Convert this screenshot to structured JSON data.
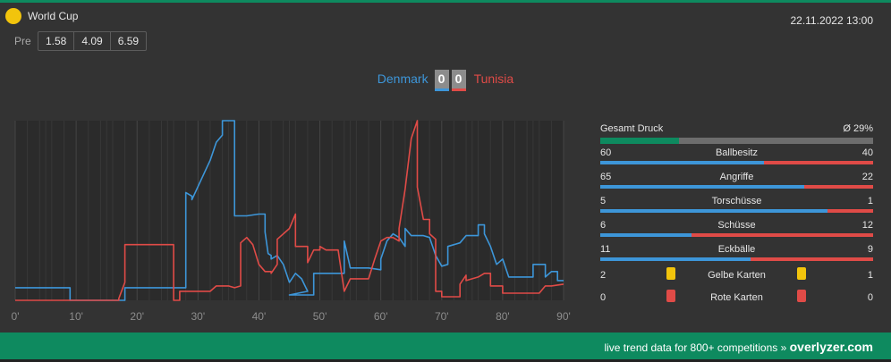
{
  "competition": {
    "name": "World Cup"
  },
  "datetime": "22.11.2022 13:00",
  "odds": {
    "label": "Pre",
    "values": [
      "1.58",
      "4.09",
      "6.59"
    ]
  },
  "match": {
    "home": "Denmark",
    "away": "Tunisia",
    "home_score": "0",
    "away_score": "0"
  },
  "colors": {
    "home": "#3d96d9",
    "away": "#e04b47",
    "accent": "#0e8a5f",
    "yellow_card": "#f2c40c"
  },
  "chart_data": {
    "type": "line",
    "x_ticks": [
      "0'",
      "10'",
      "20'",
      "30'",
      "40'",
      "50'",
      "60'",
      "70'",
      "80'",
      "90'"
    ],
    "xlim": [
      0,
      90
    ],
    "ylim": [
      0,
      100
    ],
    "grid": true,
    "series": [
      {
        "name": "Denmark",
        "color": "#3d96d9",
        "points": [
          [
            0,
            7
          ],
          [
            9,
            7
          ],
          [
            9,
            0
          ],
          [
            18,
            0
          ],
          [
            18,
            7
          ],
          [
            28,
            7
          ],
          [
            28,
            60
          ],
          [
            29,
            58
          ],
          [
            29,
            56
          ],
          [
            32,
            78
          ],
          [
            33,
            88
          ],
          [
            34,
            92
          ],
          [
            34,
            100
          ],
          [
            36,
            100
          ],
          [
            36,
            47
          ],
          [
            38,
            47
          ],
          [
            40,
            48
          ],
          [
            41,
            48
          ],
          [
            41,
            38
          ],
          [
            41.5,
            26
          ],
          [
            42,
            25
          ],
          [
            42,
            23
          ],
          [
            43,
            25
          ],
          [
            44,
            20
          ],
          [
            45,
            10
          ],
          [
            46,
            15
          ],
          [
            47,
            12
          ],
          [
            48,
            5
          ],
          [
            45,
            3
          ],
          [
            49,
            3
          ],
          [
            49,
            15
          ],
          [
            53,
            15
          ],
          [
            54,
            15
          ],
          [
            54,
            33
          ],
          [
            55,
            18
          ],
          [
            58,
            18
          ],
          [
            60,
            17
          ],
          [
            60,
            23
          ],
          [
            61,
            33
          ],
          [
            62,
            37
          ],
          [
            63,
            35
          ],
          [
            64,
            30
          ],
          [
            64,
            40
          ],
          [
            65,
            36
          ],
          [
            67,
            36
          ],
          [
            68,
            35
          ],
          [
            69,
            25
          ],
          [
            70,
            19
          ],
          [
            71,
            20
          ],
          [
            71,
            30
          ],
          [
            73,
            32
          ],
          [
            74,
            36
          ],
          [
            76,
            36
          ],
          [
            76,
            42
          ],
          [
            77,
            42
          ],
          [
            77,
            37
          ],
          [
            78,
            30
          ],
          [
            79,
            20
          ],
          [
            80,
            23
          ],
          [
            81,
            13
          ],
          [
            85,
            13
          ],
          [
            85,
            20
          ],
          [
            87,
            20
          ],
          [
            87,
            13
          ],
          [
            88,
            16
          ],
          [
            89,
            16
          ],
          [
            89,
            11
          ],
          [
            90,
            11
          ]
        ]
      },
      {
        "name": "Tunisia",
        "color": "#e04b47",
        "points": [
          [
            0,
            0
          ],
          [
            17,
            0
          ],
          [
            17,
            1
          ],
          [
            18,
            10
          ],
          [
            18,
            31
          ],
          [
            26,
            31
          ],
          [
            26,
            0
          ],
          [
            27,
            0
          ],
          [
            27,
            5
          ],
          [
            31,
            5
          ],
          [
            32,
            5
          ],
          [
            33,
            8
          ],
          [
            35,
            8
          ],
          [
            36,
            7
          ],
          [
            37,
            8
          ],
          [
            37,
            32
          ],
          [
            38,
            35
          ],
          [
            39,
            31
          ],
          [
            40,
            20
          ],
          [
            41,
            16
          ],
          [
            42,
            16
          ],
          [
            42,
            15
          ],
          [
            43,
            20
          ],
          [
            43,
            34
          ],
          [
            45,
            40
          ],
          [
            46,
            48
          ],
          [
            46,
            30
          ],
          [
            48,
            30
          ],
          [
            48,
            21
          ],
          [
            49,
            28
          ],
          [
            50,
            28
          ],
          [
            50,
            30
          ],
          [
            51,
            28
          ],
          [
            53,
            28
          ],
          [
            54,
            5
          ],
          [
            55,
            12
          ],
          [
            57,
            12
          ],
          [
            58,
            12
          ],
          [
            59,
            23
          ],
          [
            60,
            33
          ],
          [
            61,
            35
          ],
          [
            62,
            35
          ],
          [
            63,
            33
          ],
          [
            63,
            40
          ],
          [
            64,
            62
          ],
          [
            65,
            90
          ],
          [
            66,
            100
          ],
          [
            66,
            63
          ],
          [
            67,
            45
          ],
          [
            68,
            45
          ],
          [
            68,
            37
          ],
          [
            69,
            34
          ],
          [
            69,
            23
          ],
          [
            69,
            20
          ],
          [
            69,
            5
          ],
          [
            70,
            5
          ],
          [
            70,
            2
          ],
          [
            73,
            2
          ],
          [
            73,
            9
          ],
          [
            74,
            14
          ],
          [
            74,
            11
          ],
          [
            76,
            13
          ],
          [
            77,
            15
          ],
          [
            78,
            15
          ],
          [
            78,
            8
          ],
          [
            80,
            8
          ],
          [
            80,
            4
          ],
          [
            86,
            4
          ],
          [
            87,
            8
          ],
          [
            88,
            8
          ],
          [
            90,
            9
          ]
        ]
      }
    ]
  },
  "stats": {
    "pressure": {
      "label": "Gesamt Druck",
      "value": "Ø 29%",
      "ratio": 0.29
    },
    "rows": [
      {
        "label": "Ballbesitz",
        "home": "60",
        "away": "40"
      },
      {
        "label": "Angriffe",
        "home": "65",
        "away": "22"
      },
      {
        "label": "Torschüsse",
        "home": "5",
        "away": "1"
      },
      {
        "label": "Schüsse",
        "home": "6",
        "away": "12"
      },
      {
        "label": "Eckbälle",
        "home": "11",
        "away": "9"
      }
    ],
    "cards": [
      {
        "label": "Gelbe Karten",
        "home": "2",
        "away": "1",
        "type": "yellow"
      },
      {
        "label": "Rote Karten",
        "home": "0",
        "away": "0",
        "type": "red"
      }
    ]
  },
  "footer": {
    "text": "live trend data for 800+ competitions »",
    "brand": "overlyzer.com"
  }
}
